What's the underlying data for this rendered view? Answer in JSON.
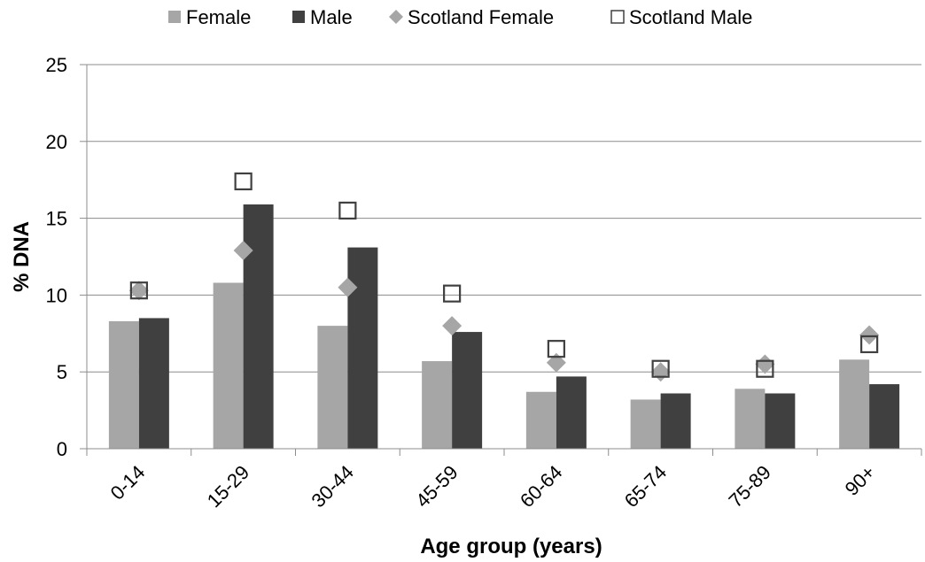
{
  "chart_data": {
    "type": "bar",
    "xlabel": "Age group (years)",
    "ylabel": "% DNA",
    "ylim": [
      0,
      25
    ],
    "yticks": [
      0,
      5,
      10,
      15,
      20,
      25
    ],
    "grid": true,
    "legend_position": "top",
    "categories": [
      "0-14",
      "15-29",
      "30-44",
      "45-59",
      "60-64",
      "65-74",
      "75-89",
      "90+"
    ],
    "series": [
      {
        "name": "Female",
        "type": "bar",
        "color": "#a6a6a6",
        "values": [
          8.3,
          10.8,
          8.0,
          5.7,
          3.7,
          3.2,
          3.9,
          5.8
        ]
      },
      {
        "name": "Male",
        "type": "bar",
        "color": "#404040",
        "values": [
          8.5,
          15.9,
          13.1,
          7.6,
          4.7,
          3.6,
          3.6,
          4.2
        ]
      },
      {
        "name": "Scotland Female",
        "type": "marker",
        "marker": "diamond",
        "color": "#a6a6a6",
        "values": [
          10.3,
          12.9,
          10.5,
          8.0,
          5.6,
          5.0,
          5.5,
          7.4
        ]
      },
      {
        "name": "Scotland Male",
        "type": "marker",
        "marker": "square-open",
        "color": "#404040",
        "values": [
          10.3,
          17.4,
          15.5,
          10.1,
          6.5,
          5.2,
          5.2,
          6.8
        ]
      }
    ]
  }
}
